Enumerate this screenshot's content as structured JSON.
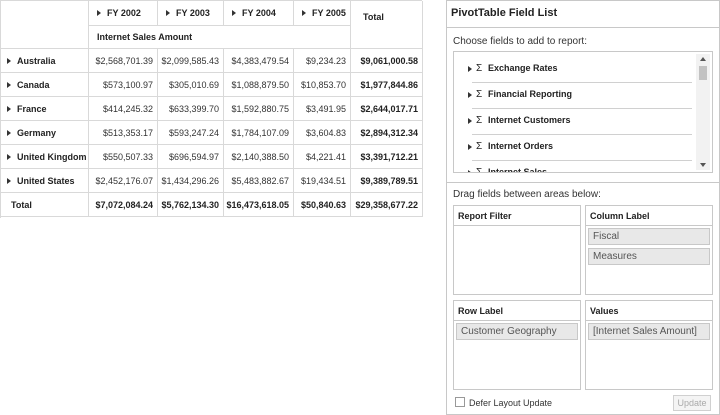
{
  "pivot": {
    "column_headers": [
      "FY 2002",
      "FY 2003",
      "FY 2004",
      "FY 2005"
    ],
    "total_header": "Total",
    "measure": "Internet Sales Amount",
    "rows": [
      {
        "label": "Australia",
        "values": [
          "$2,568,701.39",
          "$2,099,585.43",
          "$4,383,479.54",
          "$9,234.23",
          "$9,061,000.58"
        ]
      },
      {
        "label": "Canada",
        "values": [
          "$573,100.97",
          "$305,010.69",
          "$1,088,879.50",
          "$10,853.70",
          "$1,977,844.86"
        ]
      },
      {
        "label": "France",
        "values": [
          "$414,245.32",
          "$633,399.70",
          "$1,592,880.75",
          "$3,491.95",
          "$2,644,017.71"
        ]
      },
      {
        "label": "Germany",
        "values": [
          "$513,353.17",
          "$593,247.24",
          "$1,784,107.09",
          "$3,604.83",
          "$2,894,312.34"
        ]
      },
      {
        "label": "United Kingdom",
        "values": [
          "$550,507.33",
          "$696,594.97",
          "$2,140,388.50",
          "$4,221.41",
          "$3,391,712.21"
        ]
      },
      {
        "label": "United States",
        "values": [
          "$2,452,176.07",
          "$1,434,296.26",
          "$5,483,882.67",
          "$19,434.51",
          "$9,389,789.51"
        ]
      }
    ],
    "grand_total": {
      "label": "Total",
      "values": [
        "$7,072,084.24",
        "$5,762,134.30",
        "$16,473,618.05",
        "$50,840.63",
        "$29,358,677.22"
      ]
    }
  },
  "field_list": {
    "title": "PivotTable Field List",
    "choose_prompt": "Choose fields to add to report:",
    "fields": [
      {
        "icon": "Σ",
        "name": "Exchange Rates"
      },
      {
        "icon": "Σ",
        "name": "Financial Reporting"
      },
      {
        "icon": "Σ",
        "name": "Internet Customers"
      },
      {
        "icon": "Σ",
        "name": "Internet Orders"
      },
      {
        "icon": "Σ",
        "name": "Internet Sales"
      }
    ],
    "drag_prompt": "Drag fields between areas below:",
    "areas": [
      {
        "title": "Report Filter",
        "items": []
      },
      {
        "title": "Column Label",
        "items": [
          "Fiscal",
          "Measures"
        ]
      },
      {
        "title": "Row Label",
        "items": [
          "Customer Geography"
        ]
      },
      {
        "title": "Values",
        "items": [
          "[Internet Sales Amount]"
        ]
      }
    ],
    "defer_label": "Defer Layout Update",
    "update_button": "Update"
  }
}
